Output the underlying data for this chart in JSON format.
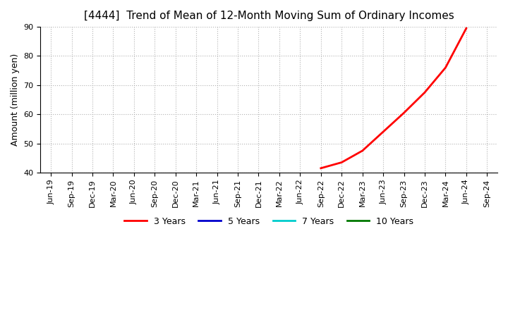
{
  "title": "[4444]  Trend of Mean of 12-Month Moving Sum of Ordinary Incomes",
  "ylabel": "Amount (million yen)",
  "ylim": [
    40,
    90
  ],
  "background_color": "#ffffff",
  "grid_color": "#aaaaaa",
  "x_labels": [
    "Jun-19",
    "Sep-19",
    "Dec-19",
    "Mar-20",
    "Jun-20",
    "Sep-20",
    "Dec-20",
    "Mar-21",
    "Jun-21",
    "Sep-21",
    "Dec-21",
    "Mar-22",
    "Jun-22",
    "Sep-22",
    "Dec-22",
    "Mar-23",
    "Jun-23",
    "Sep-23",
    "Dec-23",
    "Mar-24",
    "Jun-24",
    "Sep-24"
  ],
  "series": {
    "3 Years": {
      "color": "#ff0000",
      "data_x": [
        13,
        14,
        15,
        16,
        17,
        18,
        19,
        20
      ],
      "data_y": [
        41.5,
        43.5,
        47.5,
        54.0,
        60.5,
        67.5,
        76.0,
        89.5
      ]
    },
    "5 Years": {
      "color": "#0000cc",
      "data_x": [],
      "data_y": []
    },
    "7 Years": {
      "color": "#00cccc",
      "data_x": [],
      "data_y": []
    },
    "10 Years": {
      "color": "#007700",
      "data_x": [],
      "data_y": []
    }
  },
  "legend_entries": [
    "3 Years",
    "5 Years",
    "7 Years",
    "10 Years"
  ],
  "legend_colors": [
    "#ff0000",
    "#0000cc",
    "#00cccc",
    "#007700"
  ],
  "title_fontsize": 11,
  "tick_fontsize": 8,
  "ylabel_fontsize": 9
}
